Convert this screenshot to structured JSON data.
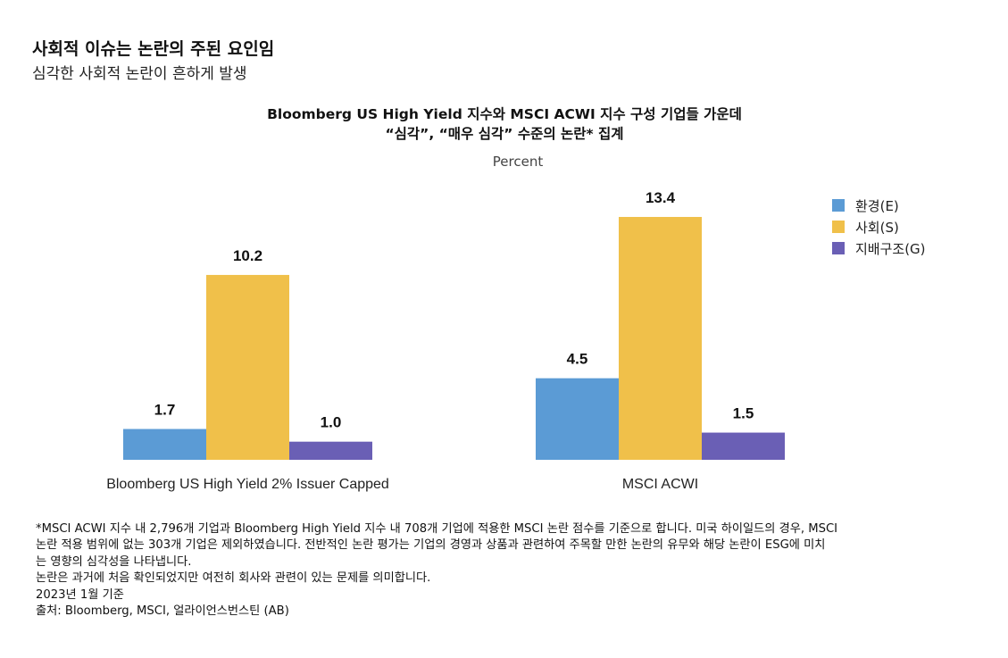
{
  "header": {
    "title": "사회적 이슈는 논란의 주된 요인임",
    "subtitle": "심각한 사회적 논란이 흔하게 발생"
  },
  "chart_data": {
    "type": "bar",
    "title_lines": [
      "Bloomberg US High Yield 지수와 MSCI ACWI 지수 구성 기업들 가운데",
      "“심각”, “매우 심각” 수준의 논란* 집계"
    ],
    "ylabel": "Percent",
    "categories": [
      "Bloomberg US High Yield 2% Issuer Capped",
      "MSCI ACWI"
    ],
    "series": [
      {
        "name": "환경(E)",
        "color": "#5b9bd5",
        "values": [
          1.7,
          4.5
        ],
        "labels": [
          "1.7",
          "4.5"
        ]
      },
      {
        "name": "사회(S)",
        "color": "#f0c04a",
        "values": [
          10.2,
          13.4
        ],
        "labels": [
          "10.2",
          "13.4"
        ]
      },
      {
        "name": "지배구조(G)",
        "color": "#6a5fb5",
        "values": [
          1.0,
          1.5
        ],
        "labels": [
          "1.0",
          "1.5"
        ]
      }
    ],
    "ylim": [
      0,
      14
    ],
    "grid": false,
    "legend": "top-right"
  },
  "footnotes": {
    "lines": [
      "*MSCI ACWI 지수 내 2,796개 기업과 Bloomberg High Yield 지수 내 708개 기업에 적용한 MSCI 논란 점수를 기준으로 합니다. 미국 하이일드의 경우,  MSCI",
      "논란 적용 범위에 없는 303개 기업은 제외하였습니다. 전반적인 논란 평가는 기업의 경영과 상품과 관련하여 주목할 만한 논란의 유무와 해당 논란이 ESG에 미치",
      "는 영향의 심각성을 나타냅니다.",
      "논란은 과거에 처음 확인되었지만 여전히 회사와 관련이 있는 문제를 의미합니다.",
      "2023년 1월 기준",
      "출처: Bloomberg, MSCI, 얼라이언스번스틴 (AB)"
    ]
  }
}
